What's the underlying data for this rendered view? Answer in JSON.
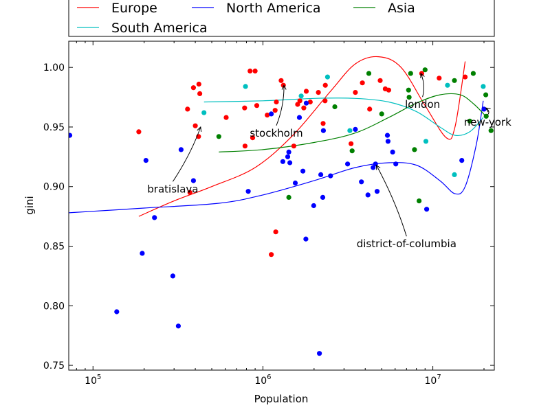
{
  "chart_data": {
    "type": "scatter",
    "title": "",
    "xlabel": "Population",
    "ylabel": "gini",
    "xscale": "log",
    "xlim": [
      72000,
      23000000
    ],
    "ylim": [
      0.746,
      1.022
    ],
    "x_ticks": [
      {
        "value": 100000,
        "base": "10",
        "exp": "5"
      },
      {
        "value": 1000000,
        "base": "10",
        "exp": "6"
      },
      {
        "value": 10000000,
        "base": "10",
        "exp": "7"
      }
    ],
    "y_ticks": [
      "0.75",
      "0.80",
      "0.85",
      "0.90",
      "0.95",
      "1.00"
    ],
    "grid": false,
    "legend_placement": "top, outside plot, 3 columns",
    "series": [
      {
        "name": "Europe",
        "color": "#ff0000",
        "points": [
          [
            186000,
            0.946
          ],
          [
            360000,
            0.965
          ],
          [
            372000,
            0.895
          ],
          [
            390000,
            0.983
          ],
          [
            400000,
            0.951
          ],
          [
            418000,
            0.942
          ],
          [
            420000,
            0.986
          ],
          [
            425000,
            0.978
          ],
          [
            608000,
            0.958
          ],
          [
            780000,
            0.966
          ],
          [
            785000,
            0.934
          ],
          [
            840000,
            0.997
          ],
          [
            870000,
            0.941
          ],
          [
            900000,
            0.997
          ],
          [
            920000,
            0.968
          ],
          [
            1060000,
            0.96
          ],
          [
            1120000,
            0.843
          ],
          [
            1180000,
            0.964
          ],
          [
            1190000,
            0.862
          ],
          [
            1200000,
            0.971
          ],
          [
            1280000,
            0.989
          ],
          [
            1320000,
            0.985
          ],
          [
            1520000,
            0.934
          ],
          [
            1600000,
            0.969
          ],
          [
            1650000,
            0.972
          ],
          [
            1740000,
            0.966
          ],
          [
            1800000,
            0.98
          ],
          [
            1900000,
            0.971
          ],
          [
            2120000,
            0.979
          ],
          [
            2260000,
            0.953
          ],
          [
            2320000,
            0.972
          ],
          [
            2330000,
            0.985
          ],
          [
            3300000,
            0.936
          ],
          [
            3500000,
            0.979
          ],
          [
            3850000,
            0.987
          ],
          [
            4250000,
            0.965
          ],
          [
            4900000,
            0.989
          ],
          [
            5250000,
            0.982
          ],
          [
            5500000,
            0.981
          ],
          [
            8600000,
            0.995
          ],
          [
            10900000,
            0.991
          ],
          [
            15500000,
            0.992
          ]
        ],
        "trend": [
          [
            186000,
            0.875
          ],
          [
            300000,
            0.888
          ],
          [
            500000,
            0.9
          ],
          [
            900000,
            0.916
          ],
          [
            1500000,
            0.943
          ],
          [
            2500000,
            0.98
          ],
          [
            3500000,
            1.003
          ],
          [
            4800000,
            1.009
          ],
          [
            6500000,
            1.0
          ],
          [
            9000000,
            0.968
          ],
          [
            12000000,
            0.941
          ],
          [
            13500000,
            0.95
          ],
          [
            15500000,
            1.005
          ]
        ]
      },
      {
        "name": "North America",
        "color": "#0000ff",
        "points": [
          [
            73000,
            0.943
          ],
          [
            138000,
            0.795
          ],
          [
            195000,
            0.844
          ],
          [
            205000,
            0.922
          ],
          [
            230000,
            0.874
          ],
          [
            295000,
            0.825
          ],
          [
            318000,
            0.783
          ],
          [
            330000,
            0.931
          ],
          [
            390000,
            0.905
          ],
          [
            820000,
            0.896
          ],
          [
            1120000,
            0.961
          ],
          [
            1310000,
            0.921
          ],
          [
            1400000,
            0.925
          ],
          [
            1420000,
            0.929
          ],
          [
            1440000,
            0.92
          ],
          [
            1550000,
            0.903
          ],
          [
            1640000,
            0.958
          ],
          [
            1720000,
            0.913
          ],
          [
            1790000,
            0.856
          ],
          [
            1800000,
            0.97
          ],
          [
            1990000,
            0.884
          ],
          [
            2150000,
            0.76
          ],
          [
            2190000,
            0.91
          ],
          [
            2250000,
            0.891
          ],
          [
            2270000,
            0.947
          ],
          [
            2500000,
            0.909
          ],
          [
            3150000,
            0.919
          ],
          [
            3500000,
            0.948
          ],
          [
            3800000,
            0.904
          ],
          [
            4150000,
            0.893
          ],
          [
            4450000,
            0.916
          ],
          [
            4600000,
            0.919
          ],
          [
            4700000,
            0.896
          ],
          [
            5400000,
            0.943
          ],
          [
            5450000,
            0.938
          ],
          [
            5800000,
            0.929
          ],
          [
            6050000,
            0.919
          ],
          [
            9200000,
            0.881
          ],
          [
            14800000,
            0.922
          ],
          [
            20000000,
            0.965
          ]
        ],
        "trend": [
          [
            72000,
            0.878
          ],
          [
            200000,
            0.882
          ],
          [
            550000,
            0.886
          ],
          [
            1000000,
            0.893
          ],
          [
            2000000,
            0.905
          ],
          [
            3500000,
            0.916
          ],
          [
            5500000,
            0.92
          ],
          [
            8000000,
            0.918
          ],
          [
            11000000,
            0.905
          ],
          [
            13500000,
            0.894
          ],
          [
            15500000,
            0.9
          ],
          [
            18000000,
            0.935
          ],
          [
            19800000,
            0.972
          ]
        ]
      },
      {
        "name": "Asia",
        "color": "#008000",
        "points": [
          [
            550000,
            0.942
          ],
          [
            1420000,
            0.891
          ],
          [
            2650000,
            0.967
          ],
          [
            3350000,
            0.93
          ],
          [
            4200000,
            0.995
          ],
          [
            5000000,
            0.961
          ],
          [
            7200000,
            0.981
          ],
          [
            7250000,
            0.975
          ],
          [
            7400000,
            0.995
          ],
          [
            7800000,
            0.931
          ],
          [
            8300000,
            0.888
          ],
          [
            9000000,
            0.998
          ],
          [
            13400000,
            0.989
          ],
          [
            16500000,
            0.955
          ],
          [
            17300000,
            0.995
          ],
          [
            20500000,
            0.977
          ],
          [
            20600000,
            0.959
          ],
          [
            22000000,
            0.947
          ]
        ],
        "trend": [
          [
            550000,
            0.929
          ],
          [
            1000000,
            0.931
          ],
          [
            2000000,
            0.937
          ],
          [
            3500000,
            0.945
          ],
          [
            5500000,
            0.958
          ],
          [
            8000000,
            0.97
          ],
          [
            11000000,
            0.977
          ],
          [
            14500000,
            0.977
          ],
          [
            17500000,
            0.969
          ],
          [
            20500000,
            0.959
          ]
        ]
      },
      {
        "name": "South America",
        "color": "#00bfbf",
        "points": [
          [
            450000,
            0.962
          ],
          [
            790000,
            0.984
          ],
          [
            1680000,
            0.976
          ],
          [
            2400000,
            0.992
          ],
          [
            3250000,
            0.947
          ],
          [
            9100000,
            0.938
          ],
          [
            12200000,
            0.985
          ],
          [
            13400000,
            0.91
          ],
          [
            19800000,
            0.984
          ]
        ],
        "trend": [
          [
            450000,
            0.971
          ],
          [
            1000000,
            0.972
          ],
          [
            2000000,
            0.974
          ],
          [
            3500000,
            0.974
          ],
          [
            5500000,
            0.971
          ],
          [
            8000000,
            0.963
          ],
          [
            11000000,
            0.95
          ],
          [
            13500000,
            0.943
          ],
          [
            16500000,
            0.946
          ],
          [
            19800000,
            0.958
          ]
        ]
      }
    ],
    "annotations": [
      {
        "text": "bratislava",
        "point": [
          430000,
          0.95
        ],
        "text_at": [
          295000,
          0.895
        ]
      },
      {
        "text": "stockholm",
        "point": [
          1330000,
          0.985
        ],
        "text_at": [
          1200000,
          0.942
        ]
      },
      {
        "text": "district-of-columbia",
        "point": [
          4650000,
          0.918
        ],
        "text_at": [
          7000000,
          0.849
        ]
      },
      {
        "text": "london",
        "point": [
          8500000,
          0.995
        ],
        "text_at": [
          8700000,
          0.966
        ]
      },
      {
        "text": "new-york",
        "point": [
          20500000,
          0.966
        ],
        "text_at": [
          21000000,
          0.951
        ]
      }
    ]
  }
}
